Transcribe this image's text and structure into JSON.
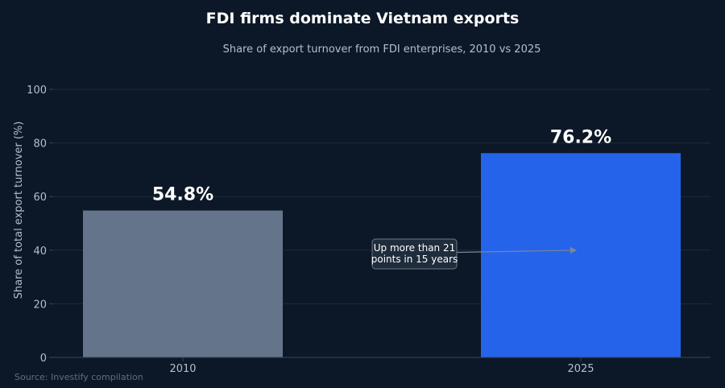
{
  "chart_data": {
    "type": "bar",
    "title": "FDI firms dominate Vietnam exports",
    "subtitle": "Share of export turnover from FDI enterprises, 2010 vs 2025",
    "xlabel": "",
    "ylabel": "Share of total export turnover (%)",
    "ylim": [
      0,
      100
    ],
    "yticks": [
      0,
      20,
      40,
      60,
      80,
      100
    ],
    "categories": [
      "2010",
      "2025"
    ],
    "values": [
      54.8,
      76.2
    ],
    "value_labels": [
      "54.8%",
      "76.2%"
    ],
    "bar_colors": [
      "#64748b",
      "#2563eb"
    ],
    "grid": true,
    "annotation": {
      "lines": [
        "Up more than 21",
        "points in 15 years"
      ],
      "arrow_target": {
        "category": "2025",
        "value": 40
      }
    },
    "source": "Source: Investify compilation"
  },
  "colors": {
    "background": "#0c1827",
    "grid": "#1e2a3a",
    "axis": "#3a4656",
    "annotation_box": "#1f2c3c",
    "annotation_border": "#6b7889",
    "arrow": "#7a8797"
  }
}
